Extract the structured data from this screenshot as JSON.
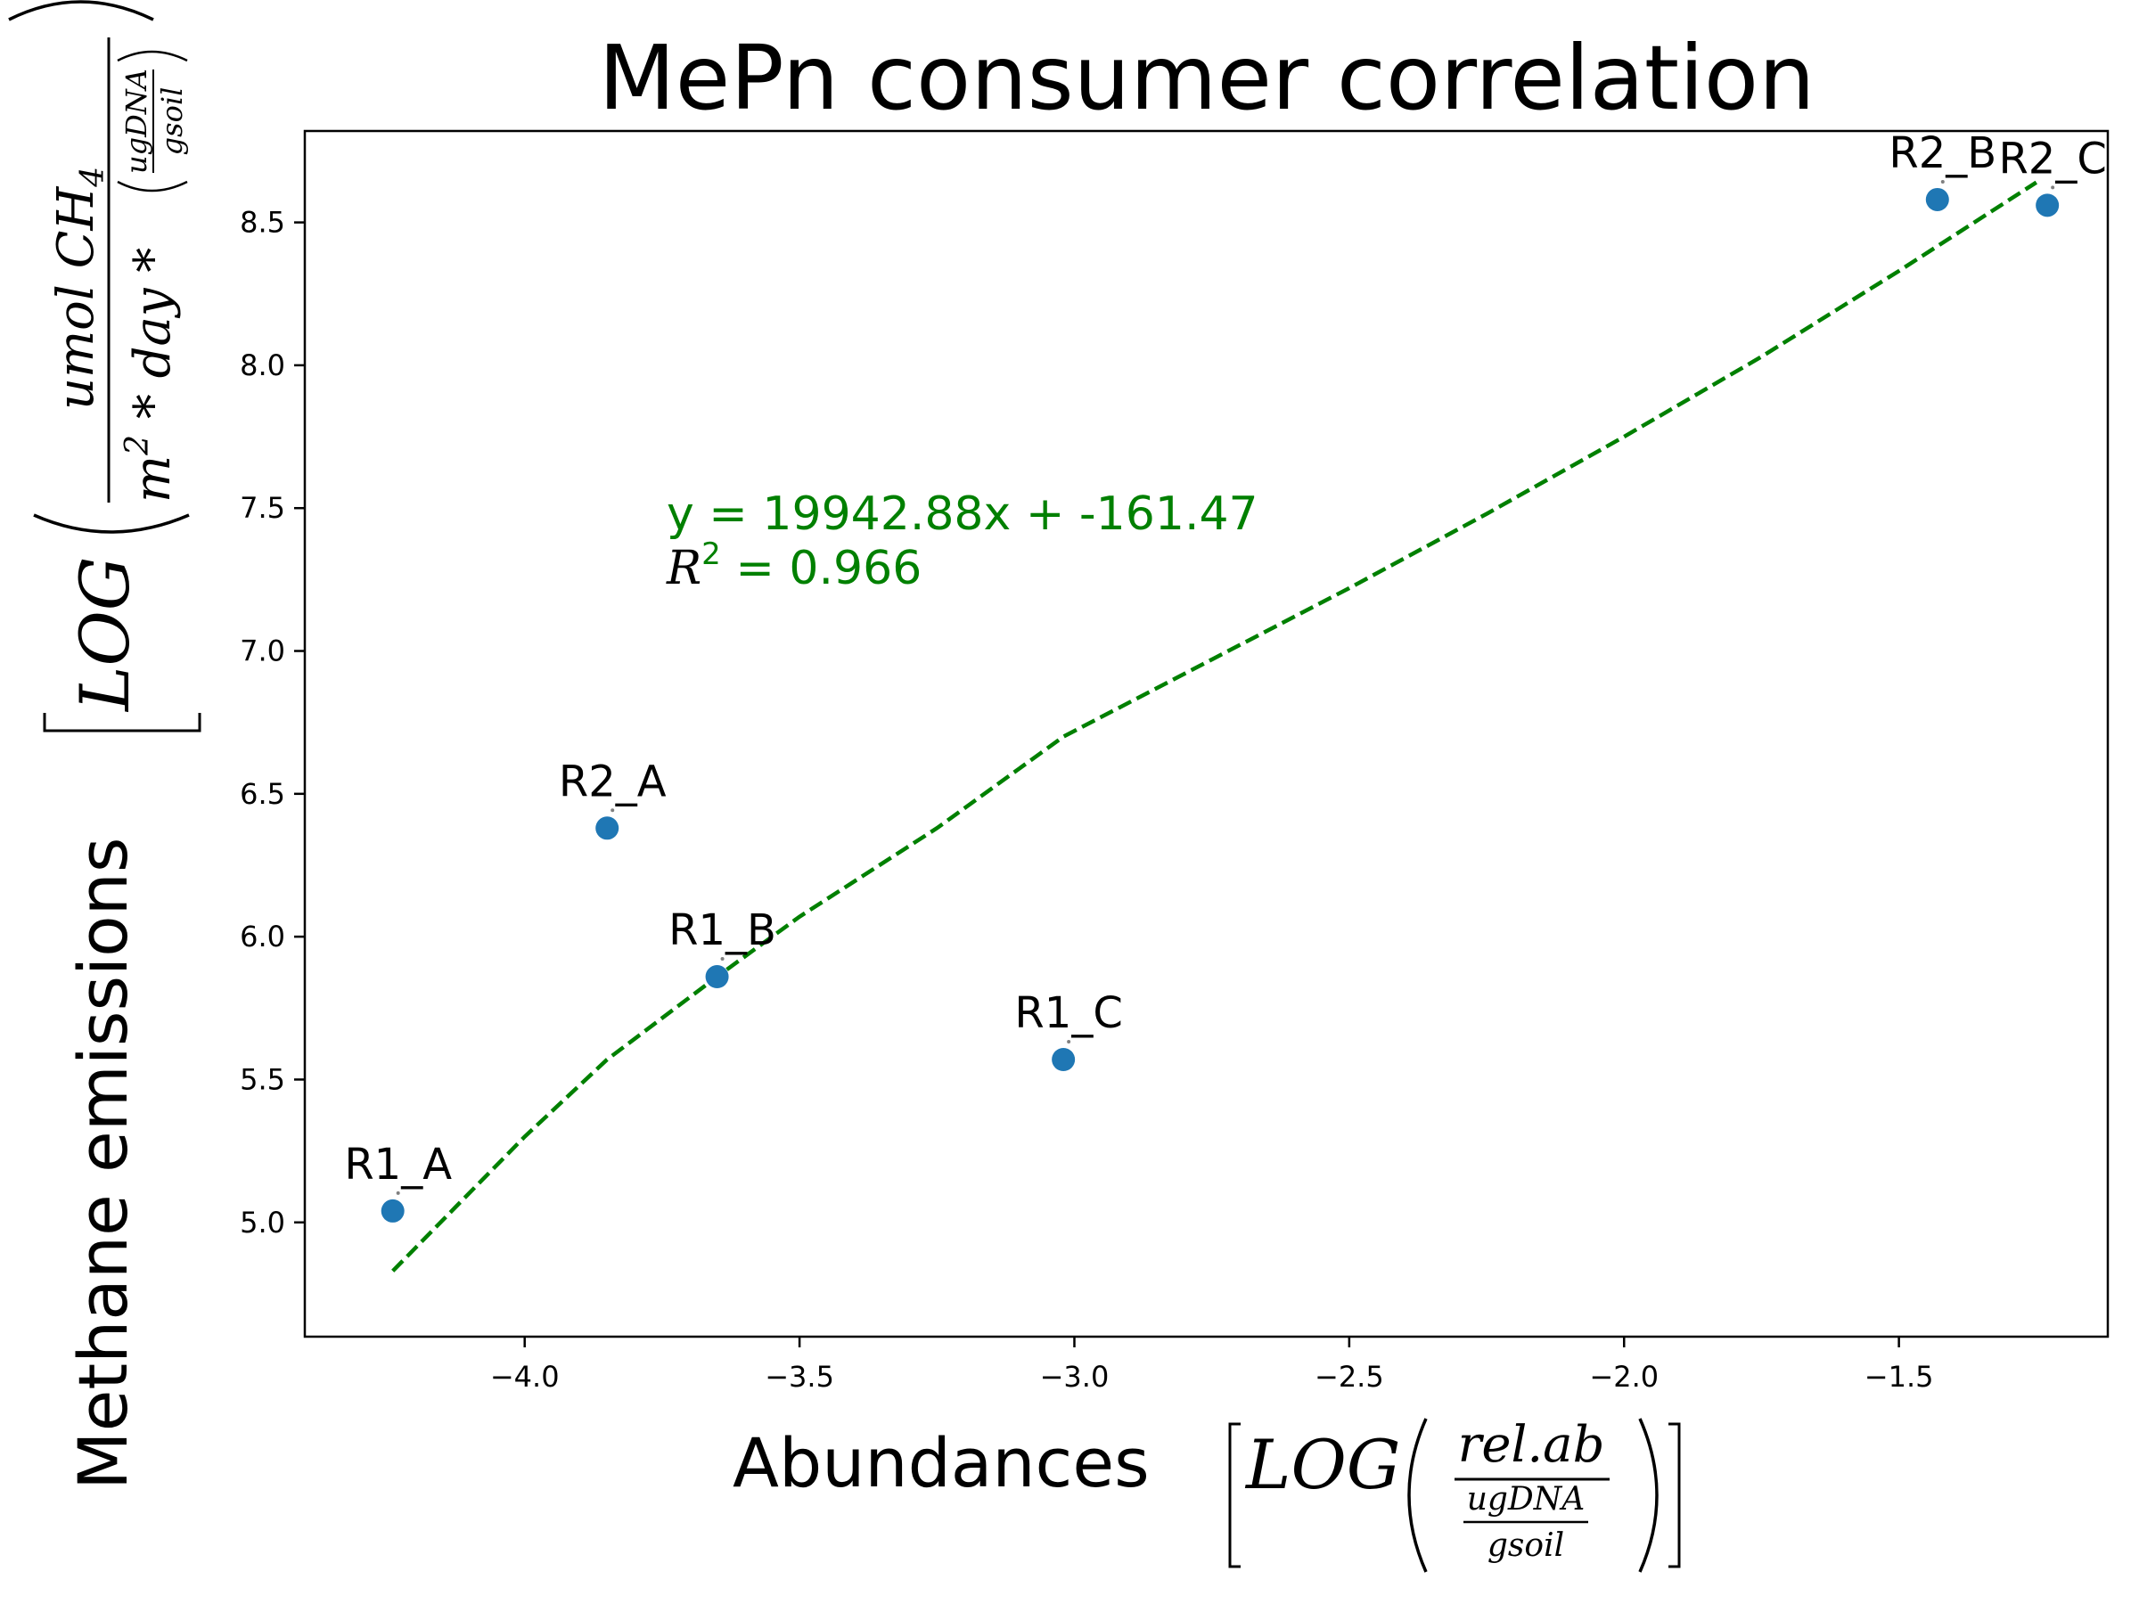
{
  "chart_data": {
    "type": "scatter",
    "title": "MePn consumer correlation",
    "xlabel": {
      "text": "Abundances",
      "math_fn": "LOG",
      "numerator": "rel.ab",
      "sub_numerator": "ugDNA",
      "sub_denominator": "gsoil"
    },
    "ylabel": {
      "text": "Methane emissions",
      "math_fn": "LOG",
      "numerator": "umol  CH",
      "numerator_sub": "4",
      "denominator": "m",
      "denominator_sup": "2",
      "denominator_rest": " * day * ",
      "sub_numerator": "ugDNA",
      "sub_denominator": "gsoil"
    },
    "xlim": [
      -4.4,
      -1.12
    ],
    "ylim": [
      4.6,
      8.82
    ],
    "xticks": [
      -4.0,
      -3.5,
      -3.0,
      -2.5,
      -2.0,
      -1.5
    ],
    "xtick_labels": [
      "−4.0",
      "−3.5",
      "−3.0",
      "−2.5",
      "−2.0",
      "−1.5"
    ],
    "yticks": [
      5.0,
      5.5,
      6.0,
      6.5,
      7.0,
      7.5,
      8.0,
      8.5
    ],
    "ytick_labels": [
      "5.0",
      "5.5",
      "6.0",
      "6.5",
      "7.0",
      "7.5",
      "8.0",
      "8.5"
    ],
    "points": [
      {
        "label": "R1_A",
        "x": -4.24,
        "y": 5.04
      },
      {
        "label": "R2_A",
        "x": -3.85,
        "y": 6.38
      },
      {
        "label": "R1_B",
        "x": -3.65,
        "y": 5.86
      },
      {
        "label": "R1_C",
        "x": -3.02,
        "y": 5.57
      },
      {
        "label": "R2_B",
        "x": -1.43,
        "y": 8.58
      },
      {
        "label": "R2_C",
        "x": -1.23,
        "y": 8.56
      }
    ],
    "fit_line": {
      "x": [
        -4.24,
        -4.0,
        -3.85,
        -3.65,
        -3.5,
        -3.25,
        -3.02,
        -2.75,
        -2.5,
        -2.25,
        -2.0,
        -1.75,
        -1.5,
        -1.25
      ],
      "y": [
        4.83,
        5.3,
        5.57,
        5.86,
        6.07,
        6.38,
        6.7,
        6.97,
        7.22,
        7.48,
        7.75,
        8.03,
        8.33,
        8.64
      ]
    },
    "annotation": {
      "equation": "y = 19942.88x + -161.47",
      "r2_symbol": "R",
      "r2_sup": "2",
      "r2_rest": " = 0.966"
    },
    "grid": false,
    "colors": {
      "point": "#1f77b4",
      "fit": "#008000",
      "annotation": "#008000",
      "axes": "#000000"
    }
  }
}
